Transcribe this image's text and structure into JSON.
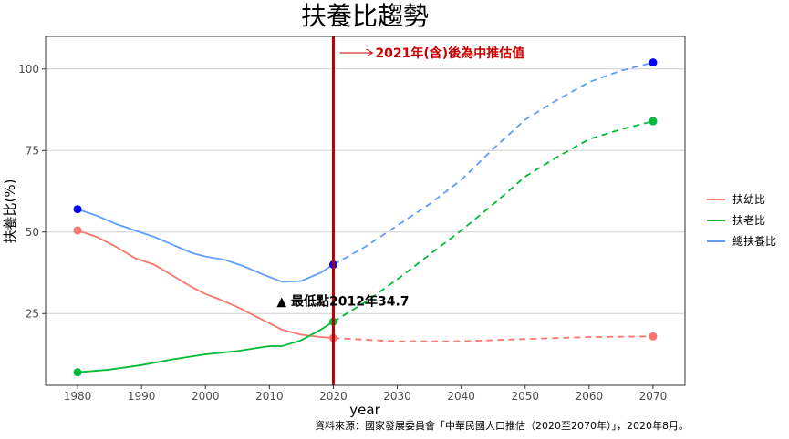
{
  "chart_data": {
    "type": "line",
    "title": "扶養比趨勢",
    "xlabel": "year",
    "ylabel": "扶養比(%)",
    "xlim": [
      1975,
      2075
    ],
    "ylim": [
      3,
      110
    ],
    "x_ticks": [
      1980,
      1990,
      2000,
      2010,
      2020,
      2030,
      2040,
      2050,
      2060,
      2070
    ],
    "y_ticks": [
      25,
      50,
      75,
      100
    ],
    "grid": "horizontal",
    "legend_position": "right",
    "projection_start": 2020,
    "series": [
      {
        "name": "扶幼比",
        "color": "#F8766D",
        "actual": [
          [
            1980,
            50.5
          ],
          [
            1983,
            48.5
          ],
          [
            1986,
            45.5
          ],
          [
            1989,
            42
          ],
          [
            1992,
            40
          ],
          [
            1995,
            36.5
          ],
          [
            1998,
            33
          ],
          [
            2000,
            31
          ],
          [
            2002,
            29.5
          ],
          [
            2005,
            27
          ],
          [
            2008,
            24
          ],
          [
            2010,
            22
          ],
          [
            2012,
            20
          ],
          [
            2015,
            18.5
          ],
          [
            2018,
            17.8
          ],
          [
            2020,
            17.5
          ]
        ],
        "projected": [
          [
            2020,
            17.5
          ],
          [
            2030,
            16.5
          ],
          [
            2040,
            16.5
          ],
          [
            2050,
            17.2
          ],
          [
            2060,
            17.8
          ],
          [
            2070,
            18
          ]
        ],
        "markers": [
          [
            1980,
            50.5
          ],
          [
            2020,
            17.5
          ],
          [
            2070,
            18
          ]
        ]
      },
      {
        "name": "扶老比",
        "color": "#00BA38",
        "actual": [
          [
            1980,
            7
          ],
          [
            1985,
            7.8
          ],
          [
            1990,
            9.2
          ],
          [
            1995,
            11
          ],
          [
            2000,
            12.5
          ],
          [
            2005,
            13.5
          ],
          [
            2010,
            15
          ],
          [
            2012,
            15
          ],
          [
            2015,
            16.8
          ],
          [
            2018,
            20
          ],
          [
            2020,
            22.5
          ]
        ],
        "projected": [
          [
            2020,
            22.5
          ],
          [
            2025,
            28.5
          ],
          [
            2030,
            35.5
          ],
          [
            2035,
            43
          ],
          [
            2040,
            50.5
          ],
          [
            2045,
            58.5
          ],
          [
            2050,
            67
          ],
          [
            2055,
            73
          ],
          [
            2060,
            78.5
          ],
          [
            2065,
            81.5
          ],
          [
            2070,
            84
          ]
        ],
        "markers": [
          [
            1980,
            7
          ],
          [
            2020,
            22.5
          ],
          [
            2070,
            84
          ]
        ]
      },
      {
        "name": "總扶養比",
        "color": "#619CFF",
        "actual": [
          [
            1980,
            57
          ],
          [
            1983,
            55
          ],
          [
            1986,
            52.5
          ],
          [
            1989,
            50.5
          ],
          [
            1992,
            48.5
          ],
          [
            1995,
            46
          ],
          [
            1998,
            43.5
          ],
          [
            2000,
            42.5
          ],
          [
            2003,
            41.5
          ],
          [
            2006,
            39.5
          ],
          [
            2009,
            37
          ],
          [
            2012,
            34.7
          ],
          [
            2015,
            35
          ],
          [
            2018,
            37.5
          ],
          [
            2020,
            40
          ]
        ],
        "projected": [
          [
            2020,
            40
          ],
          [
            2025,
            45.5
          ],
          [
            2030,
            52
          ],
          [
            2035,
            58.5
          ],
          [
            2040,
            66
          ],
          [
            2045,
            75.5
          ],
          [
            2050,
            84.5
          ],
          [
            2055,
            90.5
          ],
          [
            2060,
            96
          ],
          [
            2065,
            99.5
          ],
          [
            2070,
            102
          ]
        ],
        "markers": [
          [
            1980,
            57
          ],
          [
            2020,
            40
          ],
          [
            2070,
            102
          ]
        ],
        "marker_color": "#0000FF"
      }
    ],
    "annotations": {
      "projection_note": "2021年(含)後為中推估值",
      "projection_note_color": "#CC0000",
      "minimum_label": "▲ 最低點2012年34.7",
      "minimum_point": [
        2012,
        34.7
      ],
      "vline_x": 2020,
      "vline_color": "#B30000"
    },
    "source": "資料來源：國家發展委員會「中華民國人口推估（2020至2070年）」，2020年8月。"
  }
}
